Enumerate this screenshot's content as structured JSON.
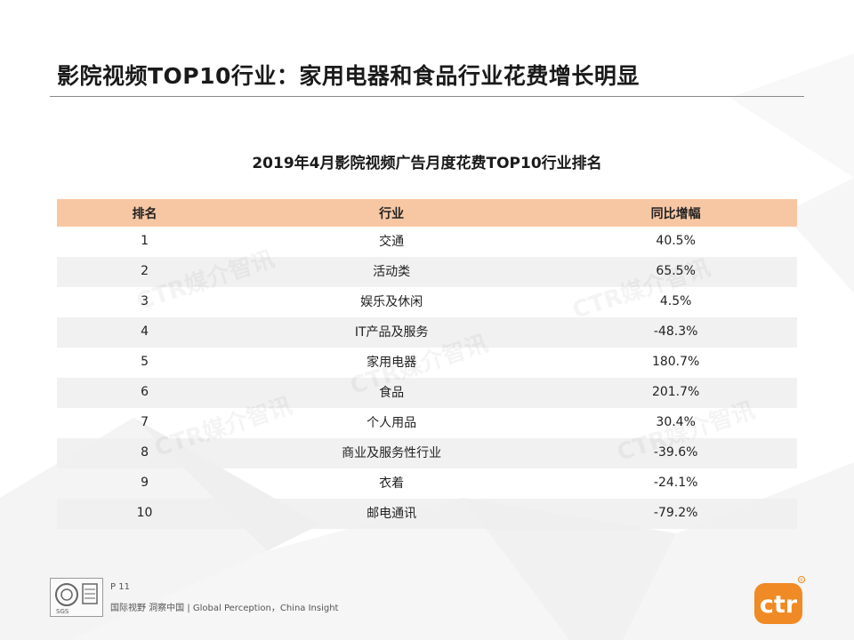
{
  "title": "影院视频TOP10行业：家用电器和食品行业花费增长明显",
  "table_title": "2019年4月影院视频广告月度花费TOP10行业排名",
  "table": {
    "headers": [
      "排名",
      "行业",
      "同比增幅"
    ],
    "rows": [
      {
        "rank": "1",
        "industry": "交通",
        "growth": "40.5%"
      },
      {
        "rank": "2",
        "industry": "活动类",
        "growth": "65.5%"
      },
      {
        "rank": "3",
        "industry": "娱乐及休闲",
        "growth": "4.5%"
      },
      {
        "rank": "4",
        "industry": "IT产品及服务",
        "growth": "-48.3%"
      },
      {
        "rank": "5",
        "industry": "家用电器",
        "growth": "180.7%"
      },
      {
        "rank": "6",
        "industry": "食品",
        "growth": "201.7%"
      },
      {
        "rank": "7",
        "industry": "个人用品",
        "growth": "30.4%"
      },
      {
        "rank": "8",
        "industry": "商业及服务性行业",
        "growth": "-39.6%"
      },
      {
        "rank": "9",
        "industry": "衣着",
        "growth": "-24.1%"
      },
      {
        "rank": "10",
        "industry": "邮电通讯",
        "growth": "-79.2%"
      }
    ]
  },
  "watermark_text": "CTR媒介智讯",
  "footer": {
    "page_label": "P 11",
    "slogan": "国际视野 洞察中国 | Global Perception，China Insight",
    "cert_logo_text": "SGS"
  },
  "logo": {
    "text": "ctr",
    "color": "#f08a24"
  },
  "colors": {
    "header_bg": "#f7c7a4",
    "shaded_row": "#eeeeee",
    "accent": "#f08a24"
  }
}
